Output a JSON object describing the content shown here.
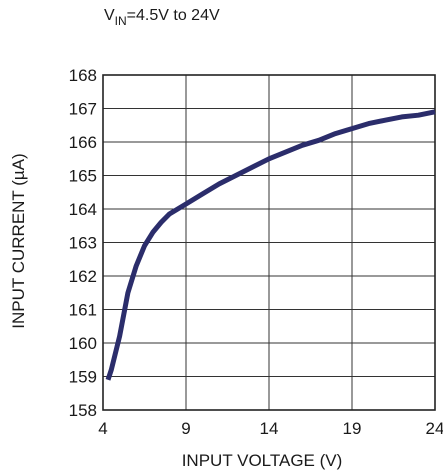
{
  "chart_data": {
    "type": "line",
    "subtitle": {
      "prefix": "V",
      "sub": "IN",
      "suffix": "=4.5V to 24V"
    },
    "xlabel": "INPUT VOLTAGE (V)",
    "ylabel": "INPUT CURRENT (µA)",
    "xlim": [
      4,
      24
    ],
    "ylim": [
      158,
      168
    ],
    "xticks": [
      4,
      9,
      14,
      19,
      24
    ],
    "yticks": [
      158,
      159,
      160,
      161,
      162,
      163,
      164,
      165,
      166,
      167,
      168
    ],
    "grid": true,
    "line_color": "#2b2d6b",
    "series": [
      {
        "x": [
          4.3,
          4.5,
          5,
          5.5,
          6,
          6.5,
          7,
          7.5,
          8,
          8.5,
          9,
          10,
          11,
          12,
          13,
          14,
          15,
          16,
          17,
          18,
          19,
          20,
          21,
          22,
          23,
          24
        ],
        "y": [
          158.9,
          159.2,
          160.2,
          161.5,
          162.3,
          162.9,
          163.3,
          163.6,
          163.85,
          164.0,
          164.15,
          164.45,
          164.75,
          165.0,
          165.25,
          165.5,
          165.7,
          165.9,
          166.05,
          166.25,
          166.4,
          166.55,
          166.65,
          166.75,
          166.8,
          166.9
        ]
      }
    ]
  }
}
